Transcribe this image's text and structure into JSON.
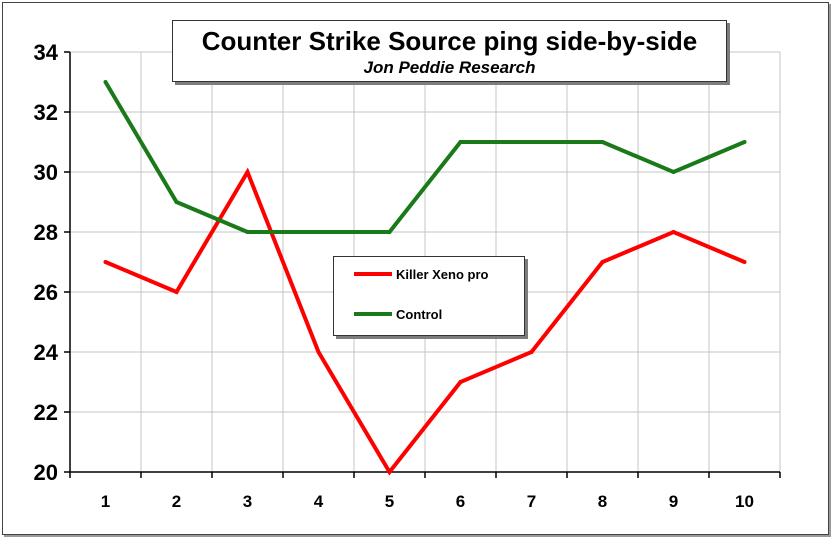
{
  "chart_data": {
    "type": "line",
    "title": "Counter Strike Source ping side-by-side",
    "subtitle": "Jon Peddie Research",
    "xlabel": "",
    "ylabel": "",
    "categories": [
      "1",
      "2",
      "3",
      "4",
      "5",
      "6",
      "7",
      "8",
      "9",
      "10"
    ],
    "ylim": [
      20,
      34
    ],
    "yticks": [
      20,
      22,
      24,
      26,
      28,
      30,
      32,
      34
    ],
    "grid": true,
    "legend_position": "center",
    "series": [
      {
        "name": "Killer Xeno pro",
        "color": "#ff0000",
        "values": [
          27,
          26,
          30,
          24,
          20,
          23,
          24,
          27,
          28,
          27
        ]
      },
      {
        "name": "Control",
        "color": "#1a7a1a",
        "values": [
          33,
          29,
          28,
          28,
          28,
          31,
          31,
          31,
          30,
          31
        ]
      }
    ]
  }
}
